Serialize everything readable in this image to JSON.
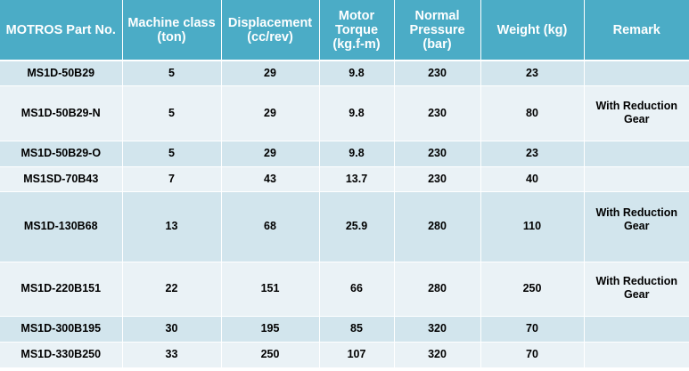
{
  "table": {
    "headers": [
      "MOTROS Part No.",
      "Machine class (ton)",
      "Displacement (cc/rev)",
      "Motor Torque (kg.f-m)",
      "Normal Pressure (bar)",
      "Weight (kg)",
      "Remark"
    ],
    "rows": [
      [
        "MS1D-50B29",
        "5",
        "29",
        "9.8",
        "230",
        "23",
        ""
      ],
      [
        "MS1D-50B29-N",
        "5",
        "29",
        "9.8",
        "230",
        "80",
        "With Reduction Gear"
      ],
      [
        "MS1D-50B29-O",
        "5",
        "29",
        "9.8",
        "230",
        "23",
        ""
      ],
      [
        "MS1SD-70B43",
        "7",
        "43",
        "13.7",
        "230",
        "40",
        ""
      ],
      [
        "MS1D-130B68",
        "13",
        "68",
        "25.9",
        "280",
        "110",
        "With Reduction Gear"
      ],
      [
        "MS1D-220B151",
        "22",
        "151",
        "66",
        "280",
        "250",
        "With Reduction Gear"
      ],
      [
        "MS1D-300B195",
        "30",
        "195",
        "85",
        "320",
        "70",
        ""
      ],
      [
        "MS1D-330B250",
        "33",
        "250",
        "107",
        "320",
        "70",
        ""
      ]
    ]
  },
  "colors": {
    "header_bg": "#4bacc6",
    "row_dark": "#d2e5ed",
    "row_light": "#eaf2f6"
  }
}
